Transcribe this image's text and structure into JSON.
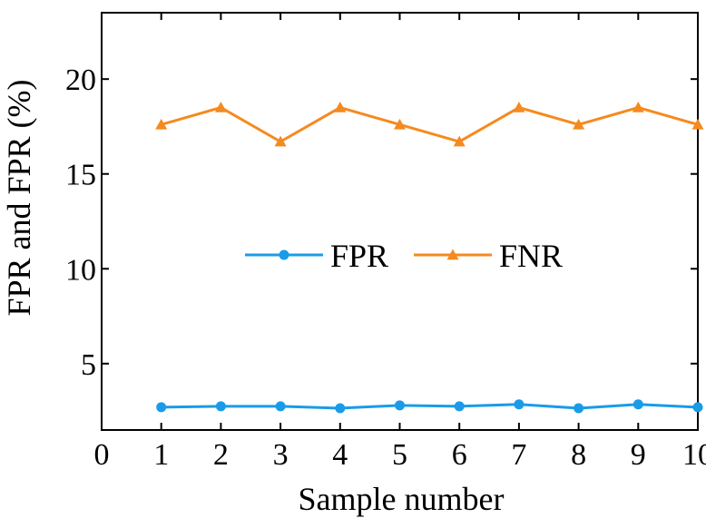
{
  "chart_data": {
    "type": "line",
    "title": "",
    "xlabel": "Sample number",
    "ylabel": "FPR and FPR (%)",
    "x": [
      1,
      2,
      3,
      4,
      5,
      6,
      7,
      8,
      9,
      10
    ],
    "xlim": [
      0,
      10
    ],
    "ylim": [
      1.5,
      23.5
    ],
    "xticks": [
      "0",
      "1",
      "2",
      "3",
      "4",
      "5",
      "6",
      "7",
      "8",
      "9",
      "10"
    ],
    "yticks": [
      "5",
      "10",
      "15",
      "20"
    ],
    "grid": false,
    "legend_position": "center",
    "series": [
      {
        "name": "FPR",
        "color": "#1a9be8",
        "marker": "circle",
        "values": [
          2.7,
          2.75,
          2.75,
          2.65,
          2.8,
          2.75,
          2.85,
          2.65,
          2.85,
          2.7
        ]
      },
      {
        "name": "FNR",
        "color": "#f58a1f",
        "marker": "triangle",
        "values": [
          17.6,
          18.5,
          16.7,
          18.5,
          17.6,
          16.7,
          18.5,
          17.6,
          18.5,
          17.6
        ]
      }
    ]
  }
}
